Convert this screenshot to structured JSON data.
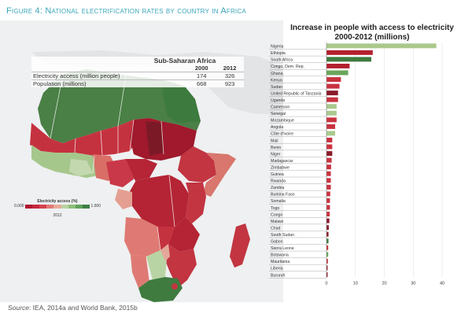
{
  "figure_title": "Figure 4: National electrification rates by country in Africa",
  "stats_table": {
    "region": "Sub-Saharan Africa",
    "years": [
      "2000",
      "2012"
    ],
    "rows": [
      {
        "label": "Electricity access (million people)",
        "v2000": "174",
        "v2012": "326"
      },
      {
        "label": "Population (millions)",
        "v2000": "668",
        "v2012": "923"
      }
    ]
  },
  "legend": {
    "title": "Electricity access (%)",
    "min": "0.000",
    "max": "1.000",
    "year": "2012",
    "colors": [
      "#b0182e",
      "#c62a3c",
      "#d6414e",
      "#de7a73",
      "#e9aa9a",
      "#b9d4a4",
      "#8fbf79",
      "#5fa05a",
      "#3d7f45"
    ]
  },
  "source_label": "Source",
  "source_text": ": IEA, 2014a and World Bank, 2015b",
  "chart_data": {
    "type": "bar",
    "orientation": "horizontal",
    "title": "Increase in people with access to electricity 2000-2012 (millions)",
    "xlim": [
      0,
      40
    ],
    "xticks": [
      "0",
      "10",
      "20",
      "30",
      "40"
    ],
    "bar_colors": {
      "positive": "#a9c98d",
      "mid": "#c8323f",
      "low": "#7b1a26"
    },
    "categories": [
      "Nigeria",
      "Ethiopia",
      "South Africa",
      "Congo, Dem. Rep.",
      "Ghana",
      "Kenya",
      "Sudan",
      "United Republic of Tanzania",
      "Uganda",
      "Cameroon",
      "Senegal",
      "Mozambique",
      "Angola",
      "Côte d'Ivoire",
      "Mali",
      "Benin",
      "Niger",
      "Madagascar",
      "Zimbabwe",
      "Guinea",
      "Rwanda",
      "Zambia",
      "Burkina Faso",
      "Somalia",
      "Togo",
      "Congo",
      "Malawi",
      "Chad",
      "South Sudan",
      "Gabon",
      "Sierra Leone",
      "Botswana",
      "Mauritania",
      "Liberia",
      "Burundi"
    ],
    "values": [
      38,
      16,
      15.5,
      8,
      7.5,
      5,
      4.5,
      4,
      4,
      3.5,
      3.5,
      3.5,
      3,
      3,
      2,
      2,
      2,
      1.8,
      1.6,
      1.5,
      1.5,
      1.5,
      1.3,
      1.2,
      1.2,
      1.1,
      1,
      0.8,
      0.7,
      0.7,
      0.6,
      0.6,
      0.5,
      0.4,
      0.4
    ],
    "colors": [
      "#a9c98d",
      "#b3202f",
      "#3f7b3f",
      "#b3202f",
      "#6aa55a",
      "#c8323f",
      "#c8323f",
      "#8a1b29",
      "#c8323f",
      "#a9c98d",
      "#a9c98d",
      "#c8323f",
      "#c8323f",
      "#a9c98d",
      "#c8323f",
      "#c8323f",
      "#8a1b29",
      "#c8323f",
      "#c8323f",
      "#c8323f",
      "#c8323f",
      "#c8323f",
      "#c8323f",
      "#c8323f",
      "#c8323f",
      "#c8323f",
      "#8a1b29",
      "#8a1b29",
      "#8a1b29",
      "#3f7b3f",
      "#c8323f",
      "#6aa55a",
      "#c8323f",
      "#8a1b29",
      "#8a1b29"
    ]
  }
}
